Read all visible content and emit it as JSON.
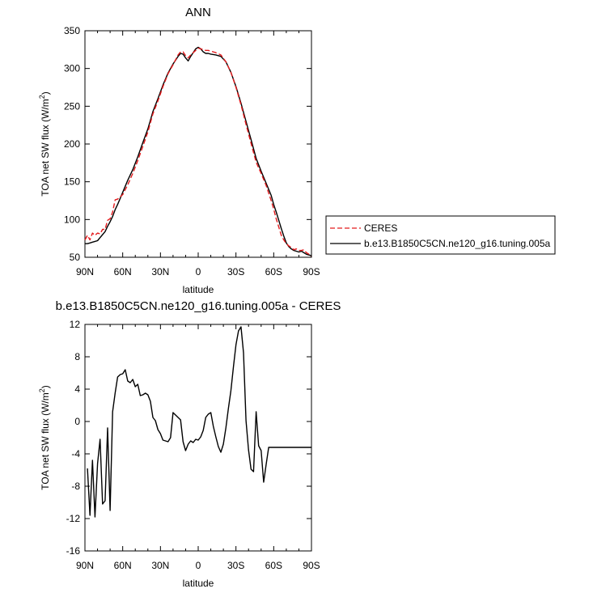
{
  "chart_data": [
    {
      "type": "line",
      "title": "ANN",
      "xlabel": "latitude",
      "ylabel": "TOA net SW flux (W/m",
      "ylabel_sup": "2",
      "ylabel_end": ")",
      "x_ticks": [
        "90N",
        "60N",
        "30N",
        "0",
        "30S",
        "60S",
        "90S"
      ],
      "xlim": [
        90,
        -90
      ],
      "ylim": [
        50,
        350
      ],
      "y_ticks": [
        50,
        100,
        150,
        200,
        250,
        300,
        350
      ],
      "legend_position": "right",
      "series": [
        {
          "name": "CERES",
          "color": "#e31a1c",
          "style": "dashed",
          "x": [
            90,
            88,
            86,
            84,
            82,
            80,
            78,
            76,
            74,
            72,
            70,
            68,
            66,
            64,
            62,
            60,
            56,
            52,
            48,
            44,
            40,
            36,
            32,
            28,
            24,
            20,
            16,
            14,
            12,
            10,
            8,
            6,
            4,
            2,
            0,
            -2,
            -4,
            -6,
            -8,
            -10,
            -14,
            -18,
            -22,
            -26,
            -30,
            -34,
            -38,
            -42,
            -46,
            -50,
            -54,
            -58,
            -60,
            -62,
            -64,
            -66,
            -68,
            -70,
            -72,
            -74,
            -76,
            -78,
            -80,
            -82,
            -84,
            -86,
            -88,
            -90
          ],
          "values": [
            73,
            79,
            73,
            82,
            79,
            82,
            81,
            87,
            87,
            99,
            101,
            110,
            126,
            127,
            130,
            133,
            146,
            161,
            178,
            197,
            216,
            240,
            257,
            276,
            293,
            305,
            318,
            322,
            322,
            317,
            314,
            318,
            321,
            324,
            327,
            326,
            325,
            324,
            324,
            323,
            321,
            318,
            309,
            295,
            275,
            252,
            226,
            201,
            176,
            161,
            145,
            125,
            114,
            101,
            90,
            79,
            73,
            68,
            65,
            63,
            60,
            61,
            59,
            59,
            60,
            56,
            54,
            51
          ]
        },
        {
          "name": "b.e13.B1850C5CN.ne120_g16.tuning.005a",
          "color": "#000000",
          "style": "solid",
          "x": [
            90,
            88,
            86,
            84,
            82,
            80,
            78,
            76,
            74,
            72,
            70,
            68,
            66,
            64,
            62,
            60,
            56,
            52,
            48,
            44,
            40,
            36,
            32,
            28,
            24,
            20,
            16,
            14,
            12,
            10,
            8,
            6,
            4,
            2,
            0,
            -2,
            -4,
            -6,
            -8,
            -10,
            -14,
            -18,
            -22,
            -26,
            -30,
            -34,
            -38,
            -42,
            -46,
            -50,
            -54,
            -58,
            -60,
            -62,
            -64,
            -66,
            -68,
            -70,
            -72,
            -74,
            -76,
            -78,
            -80,
            -82,
            -84,
            -86,
            -88,
            -90
          ],
          "values": [
            68,
            68,
            69,
            70,
            71,
            72,
            76,
            80,
            84,
            91,
            97,
            104,
            113,
            120,
            128,
            136,
            152,
            166,
            183,
            202,
            220,
            243,
            260,
            278,
            294,
            306,
            316,
            320,
            319,
            314,
            310,
            316,
            321,
            326,
            328,
            326,
            322,
            320,
            320,
            319,
            318,
            316,
            309,
            295,
            276,
            254,
            230,
            206,
            181,
            164,
            148,
            132,
            120,
            110,
            99,
            88,
            78,
            69,
            64,
            61,
            59,
            58,
            57,
            58,
            56,
            54,
            53,
            52
          ]
        }
      ]
    },
    {
      "type": "line",
      "title": "b.e13.B1850C5CN.ne120_g16.tuning.005a - CERES",
      "xlabel": "latitude",
      "ylabel": "TOA net SW flux (W/m",
      "ylabel_sup": "2",
      "ylabel_end": ")",
      "x_ticks": [
        "90N",
        "60N",
        "30N",
        "0",
        "30S",
        "60S",
        "90S"
      ],
      "xlim": [
        90,
        -90
      ],
      "ylim": [
        -16,
        12
      ],
      "y_ticks": [
        -16,
        -12,
        -8,
        -4,
        0,
        4,
        8,
        12
      ],
      "grid": false,
      "series": [
        {
          "color": "#000000",
          "style": "solid",
          "x": [
            88,
            86,
            84,
            82,
            80,
            78,
            76,
            74,
            72,
            70,
            68,
            66,
            64,
            62,
            60,
            58,
            56,
            54,
            52,
            50,
            48,
            46,
            44,
            42,
            40,
            38,
            36,
            34,
            32,
            30,
            28,
            26,
            24,
            22,
            20,
            18,
            16,
            14,
            12,
            10,
            8,
            6,
            4,
            2,
            0,
            -2,
            -4,
            -6,
            -8,
            -10,
            -12,
            -14,
            -16,
            -18,
            -20,
            -22,
            -24,
            -26,
            -28,
            -30,
            -32,
            -34,
            -36,
            -38,
            -40,
            -42,
            -44,
            -46,
            -48,
            -50,
            -52,
            -54,
            -56,
            -58,
            -60,
            -62,
            -64,
            -66,
            -68,
            -70,
            -72,
            -74,
            -76,
            -78,
            -80,
            -82,
            -84,
            -86,
            -88,
            -90
          ],
          "values": [
            -5.8,
            -11.6,
            -4.8,
            -11.8,
            -5.2,
            -2.2,
            -10.2,
            -9.8,
            -0.8,
            -11,
            1.2,
            3.5,
            5.5,
            5.8,
            5.9,
            6.4,
            5,
            4.8,
            5.2,
            4.3,
            4.6,
            3.2,
            3.3,
            3.5,
            3.3,
            2.5,
            0.5,
            0.1,
            -1,
            -1.5,
            -2.3,
            -2.4,
            -2.5,
            -2,
            1.1,
            0.8,
            0.5,
            0.2,
            -2.5,
            -3.6,
            -2.8,
            -2.4,
            -2.6,
            -2.2,
            -2.3,
            -1.9,
            -1.1,
            0.5,
            0.9,
            1.1,
            -0.6,
            -1.9,
            -3.1,
            -3.8,
            -2.8,
            -0.8,
            1.6,
            3.8,
            6.8,
            9.5,
            11.2,
            11.7,
            8.5,
            0.1,
            -3.5,
            -5.9,
            -6.2,
            1.2,
            -3.0,
            -3.6,
            -7.5,
            -5.3,
            -3.2,
            -3.2,
            -3.2,
            -3.2,
            -3.2,
            -3.2,
            -3.2,
            -3.2,
            -3.2,
            -3.2,
            -3.2,
            -3.2,
            -3.2,
            -3.2,
            -3.2,
            -3.2,
            -3.2,
            -3.2
          ]
        }
      ]
    }
  ]
}
